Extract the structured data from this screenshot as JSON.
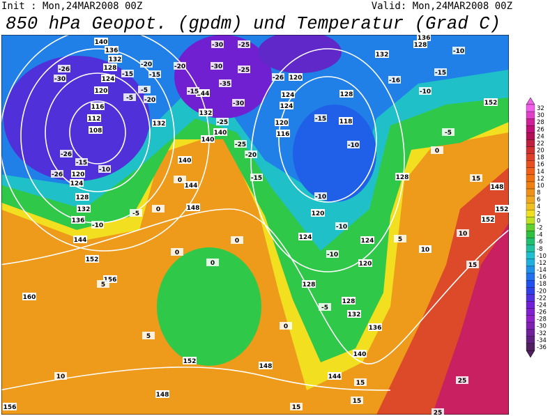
{
  "header": {
    "init": "Init : Mon,24MAR2008 00Z",
    "valid": "Valid: Mon,24MAR2008 00Z",
    "title": "850 hPa Geopot. (gpdm) und Temperatur (Grad C)"
  },
  "colorbar": {
    "levels": [
      32,
      30,
      28,
      26,
      24,
      22,
      20,
      18,
      16,
      14,
      12,
      10,
      8,
      6,
      4,
      2,
      0,
      -2,
      -4,
      -6,
      -8,
      -10,
      -12,
      -14,
      -16,
      -18,
      -20,
      -22,
      -24,
      -26,
      -28,
      -30,
      -32,
      -34,
      -36
    ],
    "colors": [
      "#f060e8",
      "#e040c8",
      "#d02098",
      "#c01078",
      "#b01058",
      "#c02040",
      "#d03030",
      "#e04028",
      "#e85020",
      "#f06018",
      "#f07010",
      "#f08010",
      "#f09018",
      "#f0a820",
      "#f0c020",
      "#f0e020",
      "#c0e020",
      "#60d030",
      "#30c040",
      "#20c070",
      "#20c0a0",
      "#20c0d0",
      "#20b0e0",
      "#2090e8",
      "#2070f0",
      "#2050f0",
      "#3040e8",
      "#5030e0",
      "#7020d8",
      "#8020d0",
      "#9020c8",
      "#8020b0",
      "#702098",
      "#602080",
      "#502060"
    ]
  },
  "geopotential_labels": [
    140,
    136,
    132,
    128,
    124,
    120,
    116,
    112,
    108,
    120,
    124,
    128,
    132,
    136,
    144,
    152,
    156,
    160,
    156,
    152,
    148,
    148,
    144,
    140,
    136,
    132,
    128,
    128,
    124,
    120,
    120,
    124,
    128,
    118,
    116,
    120,
    124,
    124,
    120,
    128,
    132,
    128,
    136,
    152,
    148,
    152,
    152,
    140,
    144,
    148,
    144,
    132,
    132,
    140,
    140
  ],
  "temperature_labels": [
    -30,
    -26,
    -15,
    -20,
    -15,
    -5,
    -5,
    -20,
    -15,
    -20,
    -30,
    -25,
    -30,
    -25,
    -35,
    -30,
    -25,
    -25,
    -20,
    -26,
    -15,
    -10,
    -16,
    -15,
    -10,
    -10,
    -5,
    -26,
    -15,
    -10,
    -26,
    -5,
    -10,
    -15,
    -10,
    -10,
    -10,
    -5,
    0,
    0,
    0,
    0,
    0,
    5,
    5,
    10,
    15,
    15,
    15,
    25,
    15,
    10,
    15,
    5,
    5,
    0,
    0,
    10,
    25
  ]
}
